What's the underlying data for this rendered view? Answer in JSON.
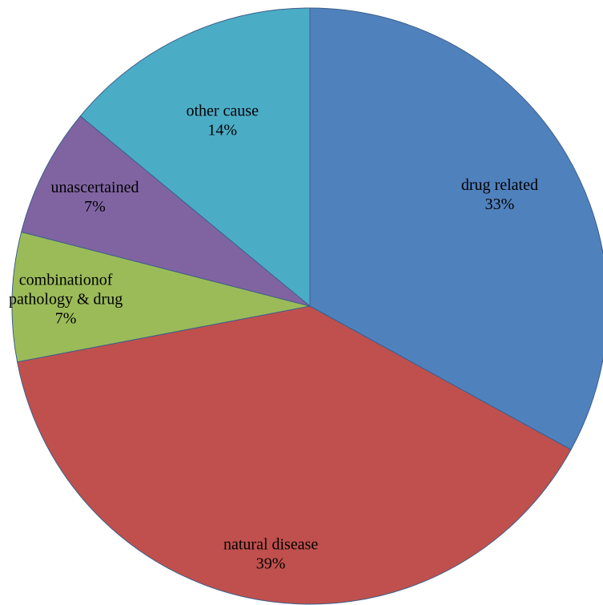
{
  "chart_data": {
    "type": "pie",
    "title": "",
    "slices": [
      {
        "label_lines": [
          "drug related"
        ],
        "percent_label": "33%",
        "value": 33,
        "color": "#4F81BD"
      },
      {
        "label_lines": [
          "natural disease"
        ],
        "percent_label": "39%",
        "value": 39,
        "color": "#C0504D"
      },
      {
        "label_lines": [
          "combinationof",
          "pathology & drug"
        ],
        "percent_label": "7%",
        "value": 7,
        "color": "#9BBB59"
      },
      {
        "label_lines": [
          "unascertained"
        ],
        "percent_label": "7%",
        "value": 7,
        "color": "#8064A2"
      },
      {
        "label_lines": [
          "other cause"
        ],
        "percent_label": "14%",
        "value": 14,
        "color": "#4BACC6"
      }
    ],
    "start_angle_deg": 0,
    "direction": "clockwise",
    "legend": "none"
  }
}
